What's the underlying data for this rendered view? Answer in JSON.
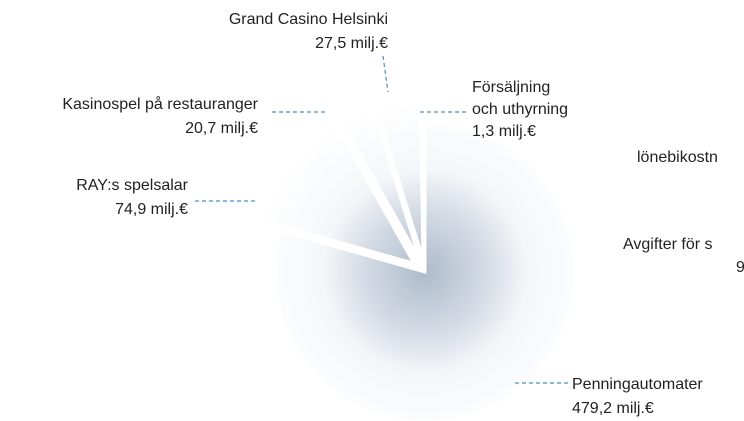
{
  "chart_data": {
    "type": "pie",
    "categories": [
      [
        "Penningautomater"
      ],
      [
        "RAY:s spelsalar"
      ],
      [
        "Kasinospel på restauranger"
      ],
      [
        "Grand Casino Helsinki"
      ],
      [
        "Försäljning",
        "och uthyrning"
      ]
    ],
    "values": [
      479.2,
      74.9,
      20.7,
      27.5,
      1.3
    ],
    "value_labels": [
      "479,2 milj.€",
      "74,9 milj.€",
      "20,7 milj.€",
      "27,5 milj.€",
      "1,3 milj.€"
    ],
    "annotations": [
      "lönebikostn",
      "Avgifter för s",
      "9"
    ]
  }
}
